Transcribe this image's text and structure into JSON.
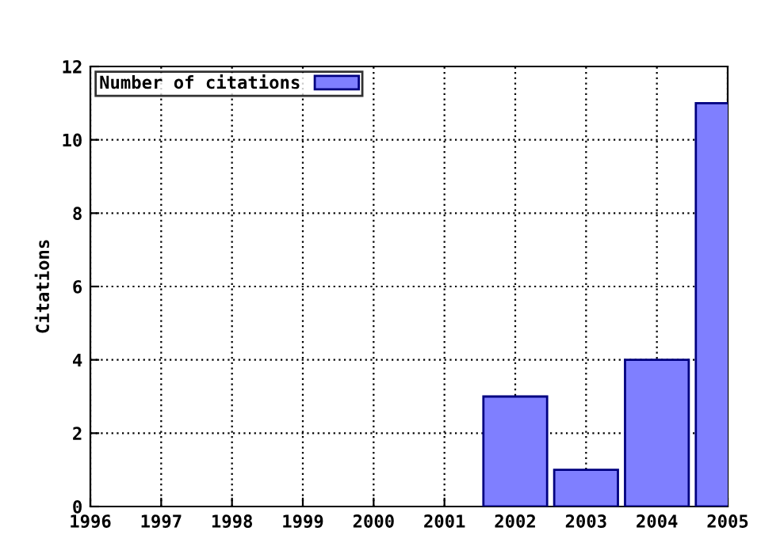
{
  "chart_data": {
    "type": "bar",
    "ylabel": "Citations",
    "x": [
      2002,
      2003,
      2004,
      2005
    ],
    "series": [
      {
        "name": "Number of citations",
        "color": "#7f7fff",
        "values": [
          3,
          1,
          4,
          11
        ]
      }
    ],
    "xlim": [
      1996,
      2005
    ],
    "xticks": [
      1996,
      1997,
      1998,
      1999,
      2000,
      2001,
      2002,
      2003,
      2004,
      2005
    ],
    "ylim": [
      0,
      12
    ],
    "yticks": [
      0,
      2,
      4,
      6,
      8,
      10,
      12
    ],
    "grid": true,
    "legend": "top left"
  }
}
